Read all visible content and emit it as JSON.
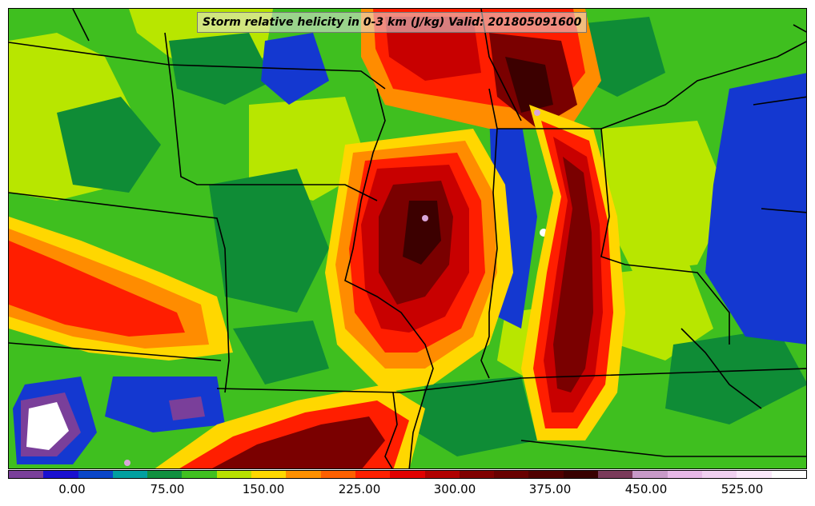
{
  "title": "Storm relative helicity in 0-3 km (J/kg) Valid: 201805091600",
  "colorbar": {
    "colors": [
      "#7a3f9a",
      "#1a10d0",
      "#0a46c8",
      "#00a0a0",
      "#109040",
      "#40c020",
      "#b8e000",
      "#ffd800",
      "#ff9000",
      "#ff6000",
      "#ff2000",
      "#e00000",
      "#b00000",
      "#800000",
      "#680000",
      "#500000",
      "#380000",
      "#7a3a5a",
      "#c89ac8",
      "#e6b8e6",
      "#f0d0f0",
      "#fae8fa",
      "#ffffff"
    ],
    "tick_labels": [
      "0.00",
      "75.00",
      "150.00",
      "225.00",
      "300.00",
      "375.00",
      "450.00",
      "525.00"
    ]
  },
  "palette": {
    "green": "#3fbf1f",
    "dark_green": "#0f8c36",
    "lime": "#b8e600",
    "yellow": "#ffd700",
    "orange": "#ff8c00",
    "red": "#ff1e00",
    "crimson": "#c80000",
    "maroon": "#7a0000",
    "darkest": "#3c0000",
    "blue": "#1438d0",
    "purple": "#7a3f9a",
    "lavender": "#d9a6d9"
  }
}
